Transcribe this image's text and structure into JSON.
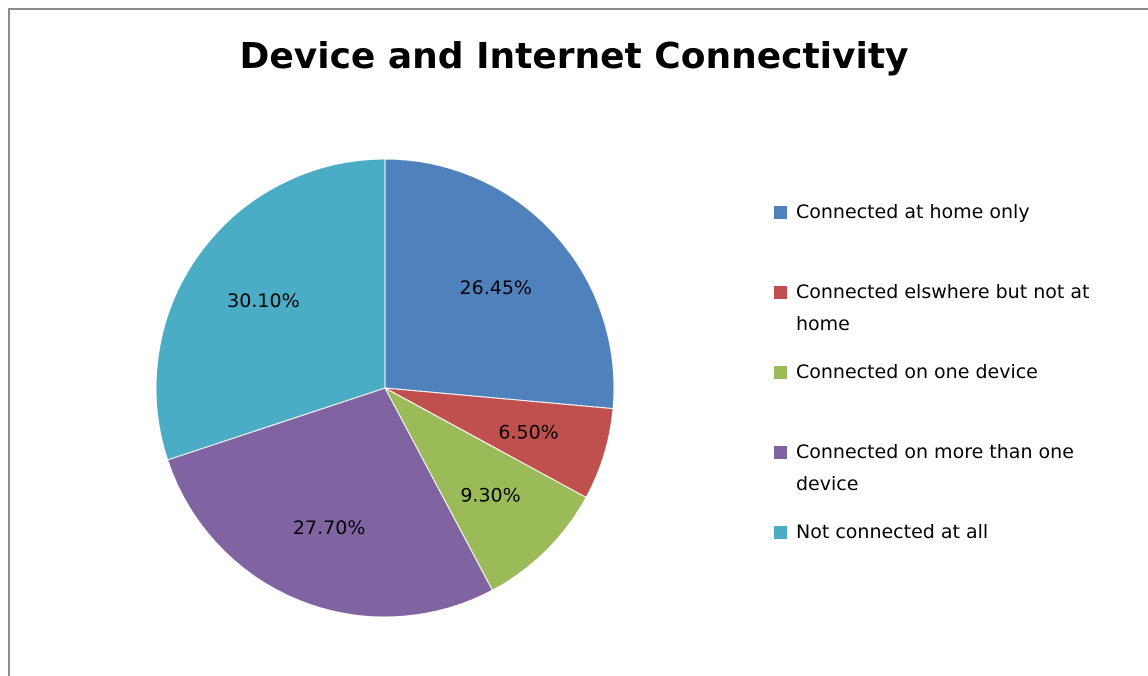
{
  "chart_data": {
    "type": "pie",
    "title": "Device and Internet Connectivity",
    "legend_position": "right",
    "slices": [
      {
        "label": "Connected at home only",
        "value": 26.45,
        "value_label": "26.45%",
        "color": "#4F81BD"
      },
      {
        "label": "Connected elswhere but not at home",
        "value": 6.5,
        "value_label": "6.50%",
        "color": "#C0504D"
      },
      {
        "label": "Connected on one device",
        "value": 9.3,
        "value_label": "9.30%",
        "color": "#9BBB59"
      },
      {
        "label": "Connected on more than one device",
        "value": 27.7,
        "value_label": "27.70%",
        "color": "#8064A2"
      },
      {
        "label": "Not connected at all",
        "value": 30.1,
        "value_label": "30.10%",
        "color": "#4BACC6"
      }
    ]
  }
}
